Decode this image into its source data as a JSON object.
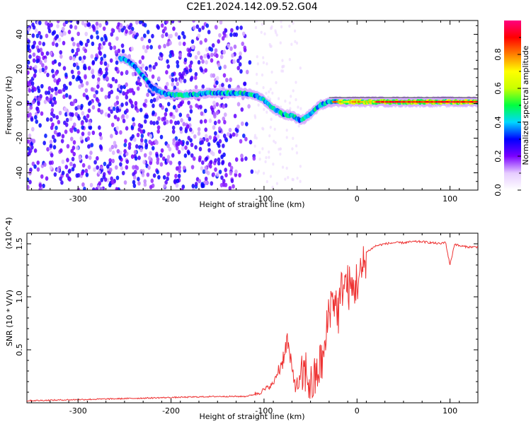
{
  "title": "C2E1.2024.142.09.52.G04",
  "chart_data": [
    {
      "type": "heatmap",
      "xlabel": "Height of straight line (km)",
      "ylabel": "Frequency (Hz)",
      "xlim": [
        -355,
        130
      ],
      "ylim": [
        -50,
        48
      ],
      "xticks": [
        -300,
        -200,
        -100,
        0,
        100
      ],
      "yticks": [
        40,
        20,
        0,
        -20,
        -40
      ],
      "colorbar": {
        "label": "Normalized spectral amplitude",
        "ticks": [
          "0.0",
          "0.2",
          "0.4",
          "0.6",
          "0.8"
        ],
        "range": [
          0,
          1
        ],
        "colors": [
          "#ffffff",
          "#e6ccff",
          "#7b00ff",
          "#0000ff",
          "#00d8ff",
          "#00ff40",
          "#c8ff00",
          "#ffff00",
          "#ff8000",
          "#ff0000",
          "#ff0080"
        ]
      },
      "ridge": {
        "height_km": [
          -250,
          -240,
          -230,
          -220,
          -210,
          -200,
          -180,
          -160,
          -140,
          -120,
          -110,
          -100,
          -90,
          -80,
          -70,
          -60,
          -50,
          -40,
          -30,
          -20,
          -10,
          0,
          20,
          40,
          60,
          80,
          100,
          130
        ],
        "freq_hz": [
          26,
          22,
          16,
          9,
          6,
          5,
          5,
          6,
          6,
          6,
          5,
          2,
          -3,
          -6,
          -7,
          -10,
          -6,
          -1,
          1,
          1,
          1,
          1,
          1,
          1,
          1,
          1,
          1,
          1
        ]
      }
    },
    {
      "type": "line",
      "xlabel": "Height of straight line (km)",
      "ylabel": "SNR (10 * V/V)",
      "yscale_label": "(x10^4)",
      "xlim": [
        -355,
        130
      ],
      "ylim": [
        0,
        1.6
      ],
      "xticks": [
        -300,
        -200,
        -100,
        0,
        100
      ],
      "yticks": [
        "0.5",
        "1.0",
        "1.5"
      ],
      "series": [
        {
          "color": "#ee3333",
          "x": [
            -355,
            -300,
            -250,
            -200,
            -150,
            -120,
            -110,
            -100,
            -90,
            -80,
            -75,
            -70,
            -65,
            -60,
            -55,
            -50,
            -45,
            -40,
            -35,
            -30,
            -25,
            -20,
            -15,
            -10,
            -5,
            0,
            5,
            10,
            20,
            30,
            40,
            50,
            60,
            70,
            80,
            90,
            95,
            100,
            105,
            110,
            120,
            130
          ],
          "y": [
            0.02,
            0.03,
            0.04,
            0.05,
            0.06,
            0.06,
            0.08,
            0.12,
            0.18,
            0.4,
            0.6,
            0.3,
            0.15,
            0.22,
            0.3,
            0.15,
            0.22,
            0.35,
            0.45,
            0.9,
            1.0,
            0.85,
            1.15,
            1.1,
            1.05,
            1.15,
            1.2,
            1.42,
            1.48,
            1.5,
            1.51,
            1.51,
            1.52,
            1.52,
            1.51,
            1.5,
            1.52,
            1.3,
            1.5,
            1.48,
            1.47,
            1.47
          ]
        }
      ]
    }
  ]
}
